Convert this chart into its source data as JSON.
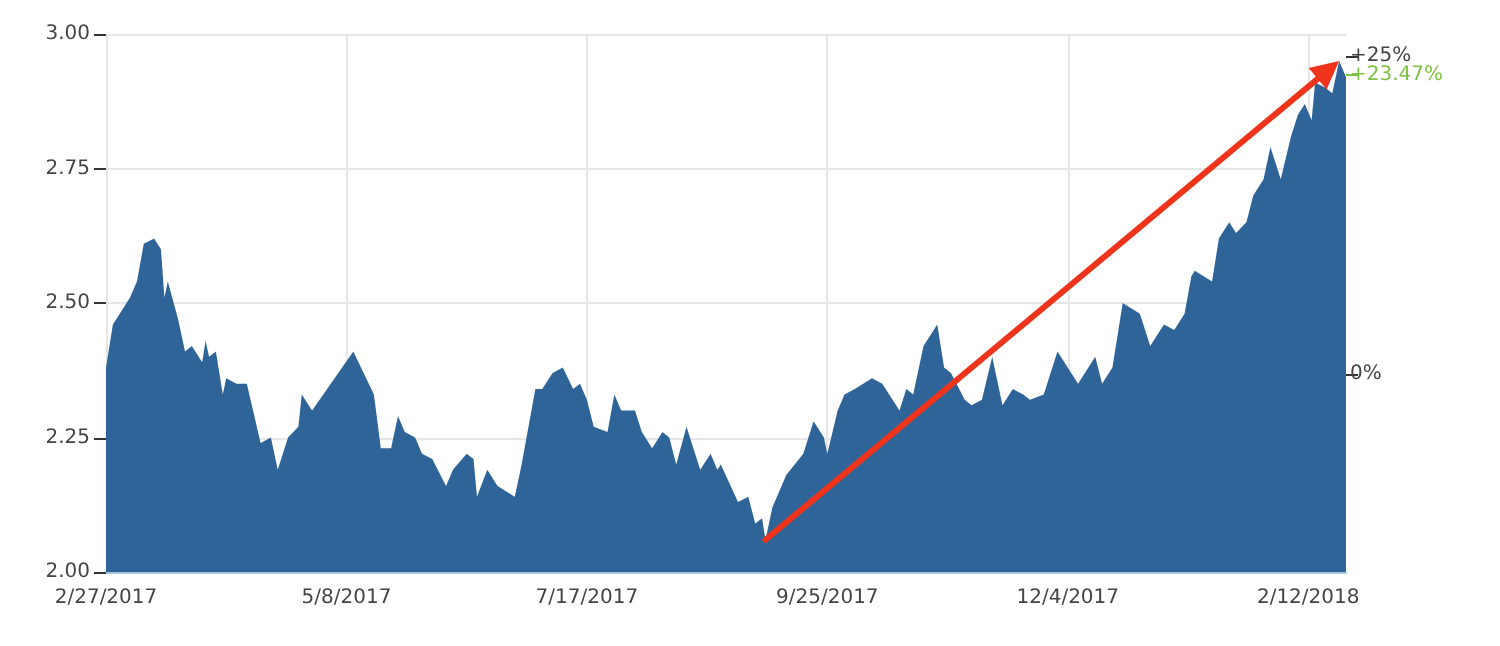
{
  "chart_data": {
    "type": "area",
    "marker": "none",
    "grid": true,
    "x": [
      "2017-02-27",
      "2017-03-01",
      "2017-03-03",
      "2017-03-06",
      "2017-03-08",
      "2017-03-10",
      "2017-03-13",
      "2017-03-15",
      "2017-03-16",
      "2017-03-17",
      "2017-03-20",
      "2017-03-22",
      "2017-03-24",
      "2017-03-27",
      "2017-03-28",
      "2017-03-29",
      "2017-03-31",
      "2017-04-02",
      "2017-04-03",
      "2017-04-06",
      "2017-04-09",
      "2017-04-13",
      "2017-04-16",
      "2017-04-18",
      "2017-04-21",
      "2017-04-24",
      "2017-04-25",
      "2017-04-28",
      "2017-05-10",
      "2017-05-16",
      "2017-05-18",
      "2017-05-21",
      "2017-05-23",
      "2017-05-25",
      "2017-05-28",
      "2017-05-30",
      "2017-06-02",
      "2017-06-06",
      "2017-06-08",
      "2017-06-12",
      "2017-06-14",
      "2017-06-15",
      "2017-06-18",
      "2017-06-21",
      "2017-06-26",
      "2017-06-28",
      "2017-07-02",
      "2017-07-04",
      "2017-07-07",
      "2017-07-10",
      "2017-07-13",
      "2017-07-15",
      "2017-07-17",
      "2017-07-19",
      "2017-07-23",
      "2017-07-25",
      "2017-07-27",
      "2017-07-31",
      "2017-08-02",
      "2017-08-05",
      "2017-08-08",
      "2017-08-10",
      "2017-08-12",
      "2017-08-15",
      "2017-08-19",
      "2017-08-22",
      "2017-08-24",
      "2017-08-25",
      "2017-08-30",
      "2017-09-02",
      "2017-09-04",
      "2017-09-06",
      "2017-09-07",
      "2017-09-09",
      "2017-09-13",
      "2017-09-18",
      "2017-09-21",
      "2017-09-24",
      "2017-09-25",
      "2017-09-28",
      "2017-09-30",
      "2017-10-03",
      "2017-10-08",
      "2017-10-11",
      "2017-10-16",
      "2017-10-18",
      "2017-10-20",
      "2017-10-23",
      "2017-10-27",
      "2017-10-29",
      "2017-10-31",
      "2017-11-04",
      "2017-11-06",
      "2017-11-09",
      "2017-11-12",
      "2017-11-15",
      "2017-11-18",
      "2017-11-21",
      "2017-11-23",
      "2017-11-27",
      "2017-12-01",
      "2017-12-05",
      "2017-12-07",
      "2017-12-12",
      "2017-12-14",
      "2017-12-17",
      "2017-12-20",
      "2017-12-25",
      "2017-12-28",
      "2018-01-01",
      "2018-01-04",
      "2018-01-07",
      "2018-01-09",
      "2018-01-10",
      "2018-01-15",
      "2018-01-17",
      "2018-01-20",
      "2018-01-22",
      "2018-01-25",
      "2018-01-27",
      "2018-01-30",
      "2018-02-01",
      "2018-02-04",
      "2018-02-07",
      "2018-02-09",
      "2018-02-11",
      "2018-02-13",
      "2018-02-14",
      "2018-02-17",
      "2018-02-19",
      "2018-02-21",
      "2018-02-23"
    ],
    "series": [
      {
        "color": "#2f6499",
        "values": [
          2.38,
          2.46,
          2.48,
          2.51,
          2.54,
          2.61,
          2.62,
          2.6,
          2.51,
          2.54,
          2.47,
          2.41,
          2.42,
          2.39,
          2.43,
          2.4,
          2.41,
          2.33,
          2.36,
          2.35,
          2.35,
          2.24,
          2.25,
          2.19,
          2.25,
          2.27,
          2.33,
          2.3,
          2.41,
          2.33,
          2.23,
          2.23,
          2.29,
          2.26,
          2.25,
          2.22,
          2.21,
          2.16,
          2.19,
          2.22,
          2.21,
          2.14,
          2.19,
          2.16,
          2.14,
          2.2,
          2.34,
          2.34,
          2.37,
          2.38,
          2.34,
          2.35,
          2.32,
          2.27,
          2.26,
          2.33,
          2.3,
          2.3,
          2.26,
          2.23,
          2.26,
          2.25,
          2.2,
          2.27,
          2.19,
          2.22,
          2.19,
          2.2,
          2.13,
          2.14,
          2.09,
          2.1,
          2.06,
          2.12,
          2.18,
          2.22,
          2.28,
          2.25,
          2.22,
          2.3,
          2.33,
          2.34,
          2.36,
          2.35,
          2.3,
          2.34,
          2.33,
          2.42,
          2.46,
          2.38,
          2.37,
          2.32,
          2.31,
          2.32,
          2.4,
          2.31,
          2.34,
          2.33,
          2.32,
          2.33,
          2.41,
          2.37,
          2.35,
          2.4,
          2.35,
          2.38,
          2.5,
          2.48,
          2.42,
          2.46,
          2.45,
          2.48,
          2.55,
          2.56,
          2.54,
          2.62,
          2.65,
          2.63,
          2.65,
          2.7,
          2.73,
          2.79,
          2.73,
          2.81,
          2.85,
          2.87,
          2.84,
          2.91,
          2.9,
          2.89,
          2.95,
          2.92
        ]
      }
    ],
    "xlim": [
      "2017-02-27",
      "2018-02-23"
    ],
    "xticks": [
      {
        "value": "2017-02-27",
        "label": "2/27/2017"
      },
      {
        "value": "2017-05-08",
        "label": "5/8/2017"
      },
      {
        "value": "2017-07-17",
        "label": "7/17/2017"
      },
      {
        "value": "2017-09-25",
        "label": "9/25/2017"
      },
      {
        "value": "2017-12-04",
        "label": "12/4/2017"
      },
      {
        "value": "2018-02-12",
        "label": "2/12/2018"
      }
    ],
    "ylim": [
      2,
      3
    ],
    "yticks": [
      {
        "value": 2,
        "label": "2.00"
      },
      {
        "value": 2.25,
        "label": "2.25"
      },
      {
        "value": 2.5,
        "label": "2.50"
      },
      {
        "value": 2.75,
        "label": "2.75"
      },
      {
        "value": 3,
        "label": "3.00"
      }
    ],
    "y2lim": [
      -15.5,
      26.7
    ],
    "y2ticks": [
      {
        "value": 0,
        "label": "0%"
      },
      {
        "value": 25,
        "label": "+25%"
      }
    ],
    "ref_lines": [
      {
        "axis": "y2",
        "value": 23.47,
        "label": "+23.47%",
        "color": "#7dc242"
      }
    ]
  }
}
